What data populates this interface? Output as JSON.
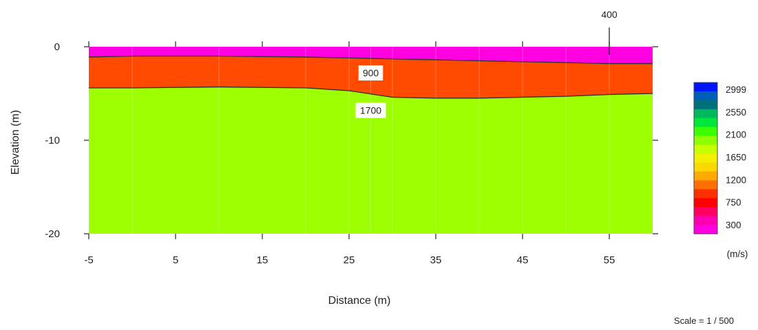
{
  "chart_data": {
    "type": "area",
    "xlabel": "Distance (m)",
    "ylabel": "Elevation (m)",
    "xlim": [
      -5,
      60
    ],
    "ylim": [
      -20,
      0
    ],
    "x_ticks": [
      -5,
      5,
      15,
      25,
      35,
      45,
      55
    ],
    "y_ticks": [
      0,
      -10,
      -20
    ],
    "layers": [
      {
        "velocity": 400,
        "color": "#ff00e0",
        "top": {
          "x": [
            -5,
            60
          ],
          "y": [
            0,
            0
          ]
        },
        "bottom": {
          "x": [
            -5,
            0,
            10,
            20,
            25,
            30,
            35,
            40,
            45,
            50,
            55,
            60
          ],
          "y": [
            -1.1,
            -1.0,
            -1.0,
            -1.1,
            -1.2,
            -1.3,
            -1.4,
            -1.5,
            -1.6,
            -1.7,
            -1.8,
            -1.8
          ]
        }
      },
      {
        "velocity": 900,
        "color": "#ff4a00",
        "bottom": {
          "x": [
            -5,
            0,
            10,
            20,
            25,
            30,
            35,
            40,
            45,
            50,
            55,
            60
          ],
          "y": [
            -4.4,
            -4.4,
            -4.3,
            -4.4,
            -4.7,
            -5.4,
            -5.5,
            -5.5,
            -5.4,
            -5.3,
            -5.1,
            -5.0
          ]
        }
      },
      {
        "velocity": 1700,
        "color": "#9dff00",
        "bottom": {
          "x": [
            -5,
            60
          ],
          "y": [
            -20,
            -20
          ]
        }
      }
    ],
    "layer_labels": [
      {
        "text": "400",
        "x": 55,
        "above_plot": true
      },
      {
        "text": "900",
        "x": 27.5,
        "y": -2.8
      },
      {
        "text": "1700",
        "x": 27.5,
        "y": -6.8
      }
    ],
    "colorbar": {
      "labels": [
        "2999",
        "2550",
        "2100",
        "1650",
        "1200",
        "750",
        "300"
      ],
      "unit": "(m/s)",
      "colors": [
        "#0014ff",
        "#005eb8",
        "#00717a",
        "#00b85e",
        "#00e63a",
        "#3cff00",
        "#8eff00",
        "#c8ff00",
        "#f0f000",
        "#ffd700",
        "#ffaa00",
        "#ff6e00",
        "#ff3000",
        "#ff0000",
        "#ff0060",
        "#ff00b0",
        "#ff00e0"
      ]
    },
    "scale_note": "Scale = 1 / 500"
  }
}
